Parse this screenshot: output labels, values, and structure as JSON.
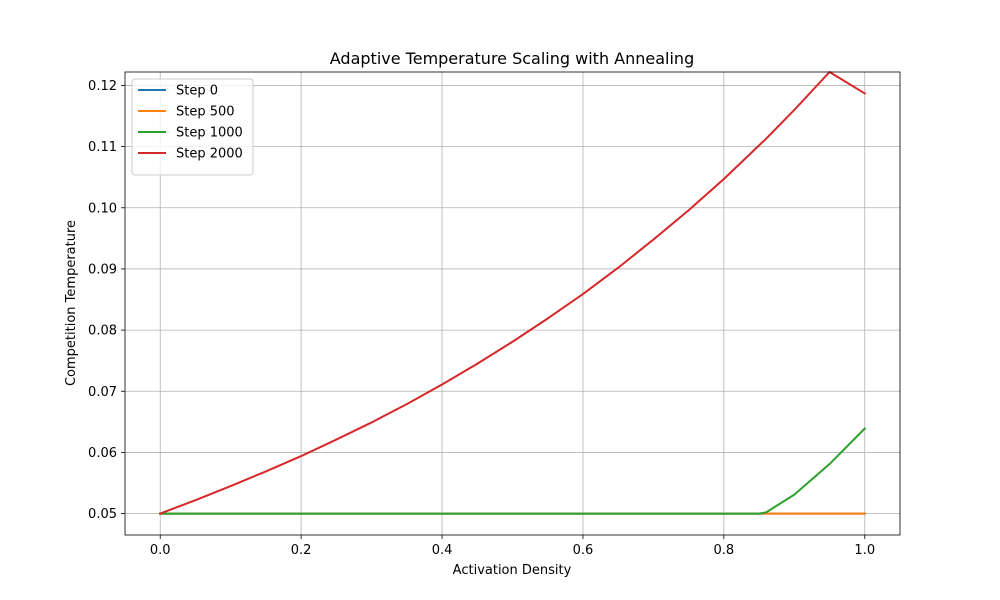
{
  "chart_data": {
    "type": "line",
    "title": "Adaptive Temperature Scaling with Annealing",
    "xlabel": "Activation Density",
    "ylabel": "Competition Temperature",
    "xlim": [
      -0.05,
      1.05
    ],
    "ylim": [
      0.0465,
      0.1222
    ],
    "x_ticks": [
      0.0,
      0.2,
      0.4,
      0.6,
      0.8,
      1.0
    ],
    "x_tick_labels": [
      "0.0",
      "0.2",
      "0.4",
      "0.6",
      "0.8",
      "1.0"
    ],
    "y_ticks": [
      0.05,
      0.06,
      0.07,
      0.08,
      0.09,
      0.1,
      0.11,
      0.12
    ],
    "y_tick_labels": [
      "0.05",
      "0.06",
      "0.07",
      "0.08",
      "0.09",
      "0.10",
      "0.11",
      "0.12"
    ],
    "grid": true,
    "legend_position": "top-left",
    "x": [
      0.0,
      0.05,
      0.1,
      0.15,
      0.2,
      0.25,
      0.3,
      0.35,
      0.4,
      0.45,
      0.5,
      0.55,
      0.6,
      0.65,
      0.7,
      0.75,
      0.8,
      0.85,
      0.86,
      0.9,
      0.95,
      1.0
    ],
    "series": [
      {
        "name": "Step 0",
        "color": "#1f77b4",
        "values": [
          0.05,
          0.05,
          0.05,
          0.05,
          0.05,
          0.05,
          0.05,
          0.05,
          0.05,
          0.05,
          0.05,
          0.05,
          0.05,
          0.05,
          0.05,
          0.05,
          0.05,
          0.05,
          0.05,
          0.05,
          0.05,
          0.05
        ]
      },
      {
        "name": "Step 500",
        "color": "#ff7f0e",
        "values": [
          0.05,
          0.05,
          0.05,
          0.05,
          0.05,
          0.05,
          0.05,
          0.05,
          0.05,
          0.05,
          0.05,
          0.05,
          0.05,
          0.05,
          0.05,
          0.05,
          0.05,
          0.05,
          0.05,
          0.05,
          0.05,
          0.05
        ]
      },
      {
        "name": "Step 1000",
        "color": "#2ca02c",
        "values": [
          0.05,
          0.05,
          0.05,
          0.05,
          0.05,
          0.05,
          0.05,
          0.05,
          0.05,
          0.05,
          0.05,
          0.05,
          0.05,
          0.05,
          0.05,
          0.05,
          0.05,
          0.05,
          0.0502,
          0.0531,
          0.0581,
          0.0639
        ]
      },
      {
        "name": "Step 2000",
        "color": "#d62728",
        "values": [
          0.05,
          0.0522,
          0.0545,
          0.0569,
          0.0594,
          0.0621,
          0.0649,
          0.0679,
          0.0711,
          0.0745,
          0.0781,
          0.0819,
          0.0859,
          0.0902,
          0.0948,
          0.0996,
          0.1047,
          0.1102,
          0.1113,
          0.116,
          0.1222,
          0.1187
        ]
      }
    ]
  }
}
